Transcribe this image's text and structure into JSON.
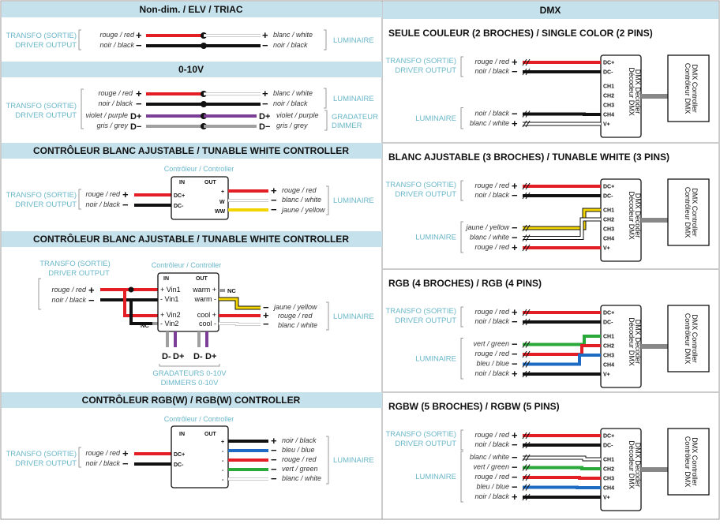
{
  "left": {
    "s1": {
      "title": "Non-dim. / ELV / TRIAC",
      "src1": "TRANSFO (SORTIE)",
      "src2": "DRIVER OUTPUT",
      "in_red": "rouge / red",
      "in_black": "noir / black",
      "out_white": "blanc / white",
      "out_black": "noir / black",
      "dst": "LUMINAIRE"
    },
    "s2": {
      "title": "0-10V",
      "src1": "TRANSFO (SORTIE)",
      "src2": "DRIVER OUTPUT",
      "in_red": "rouge / red",
      "in_black": "noir / black",
      "in_purple": "violet / purple",
      "in_grey": "gris / grey",
      "out_white": "blanc / white",
      "out_black": "noir / black",
      "out_purple": "violet / purple",
      "out_grey": "gris / grey",
      "dst": "LUMINAIRE",
      "dim1": "GRADATEUR",
      "dim2": "DIMMER"
    },
    "s3": {
      "title": "CONTRÔLEUR BLANC AJUSTABLE / TUNABLE WHITE CONTROLLER",
      "ctrl": "Contrôleur / Controller",
      "src1": "TRANSFO (SORTIE)",
      "src2": "DRIVER OUTPUT",
      "in_red": "rouge / red",
      "in_black": "noir / black",
      "in_hdr": "IN",
      "out_hdr": "OUT",
      "dcp": "DC+",
      "dcm": "DC-",
      "p_plus": "+",
      "p_w": "W",
      "p_ww": "WW",
      "out_red": "rouge / red",
      "out_white": "blanc / white",
      "out_yellow": "jaune / yellow",
      "dst": "LUMINAIRE"
    },
    "s4": {
      "title": "CONTRÔLEUR BLANC AJUSTABLE / TUNABLE WHITE CONTROLLER",
      "ctrl": "Contrôleur / Controller",
      "src1": "TRANSFO (SORTIE)",
      "src2": "DRIVER OUTPUT",
      "in_red": "rouge / red",
      "in_black": "noir / black",
      "in_hdr": "IN",
      "out_hdr": "OUT",
      "vin1p": "+ Vin1",
      "vin1m": "- Vin1",
      "vin2p": "+ Vin2",
      "vin2m": "- Vin2",
      "warmp": "warm +",
      "warmm": "warm -",
      "coolp": "cool +",
      "coolm": "cool -",
      "nc": "NC",
      "out_yellow": "jaune / yellow",
      "out_red": "rouge / red",
      "out_white": "blanc / white",
      "dst": "LUMINAIRE",
      "dm": "D-",
      "dp": "D+",
      "dim1": "GRADATEURS 0-10V",
      "dim2": "DIMMERS 0-10V"
    },
    "s5": {
      "title": "CONTRÔLEUR RGB(W) / RGB(W) CONTROLLER",
      "ctrl": "Contrôleur / Controller",
      "src1": "TRANSFO (SORTIE)",
      "src2": "DRIVER OUTPUT",
      "in_red": "rouge / red",
      "in_black": "noir / black",
      "in_hdr": "IN",
      "out_hdr": "OUT",
      "dcp": "DC+",
      "dcm": "DC-",
      "p_plus": "+",
      "p_minus": "-",
      "out_black": "noir / black",
      "out_blue": "bleu / blue",
      "out_red": "rouge / red",
      "out_green": "vert / green",
      "out_white": "blanc / white",
      "dst": "LUMINAIRE"
    }
  },
  "right": {
    "title": "DMX",
    "decoder": "Décodeur DMX",
    "decoder_en": "DMX Decoder",
    "controller": "Contrôleur DMX",
    "controller_en": "DMX Controller",
    "dcp": "DC+",
    "dcm": "DC-",
    "ch1": "CH1",
    "ch2": "CH2",
    "ch3": "CH3",
    "ch4": "CH4",
    "vp": "V+",
    "src1": "TRANSFO (SORTIE)",
    "src2": "DRIVER OUTPUT",
    "lum": "LUMINAIRE",
    "in_red": "rouge / red",
    "in_black": "noir / black",
    "r1": {
      "title": "SEULE COULEUR (2 BROCHES) / SINGLE COLOR (2 PINS)",
      "o1": "noir / black",
      "o2": "blanc / white"
    },
    "r2": {
      "title": "BLANC AJUSTABLE (3 BROCHES) / TUNABLE WHITE (3 PINS)",
      "o1": "jaune / yellow",
      "o2": "blanc / white",
      "o3": "rouge / red"
    },
    "r3": {
      "title": "RGB (4 BROCHES) / RGB (4 PINS)",
      "o1": "vert / green",
      "o2": "rouge / red",
      "o3": "bleu / blue",
      "o4": "noir / black"
    },
    "r4": {
      "title": "RGBW (5 BROCHES) / RGBW (5 PINS)",
      "o1": "blanc / white",
      "o2": "vert / green",
      "o3": "rouge / red",
      "o4": "bleu / blue",
      "o5": "noir / black"
    }
  },
  "colors": {
    "header_bg": "#c5e2ec",
    "red": "#e31e24",
    "black": "#111111",
    "purple": "#7b3f98",
    "grey": "#a0a0a0",
    "yellow": "#f2d400",
    "blue": "#1e6bc4",
    "green": "#2aa83a",
    "cyan_text": "#6ab7c9"
  }
}
